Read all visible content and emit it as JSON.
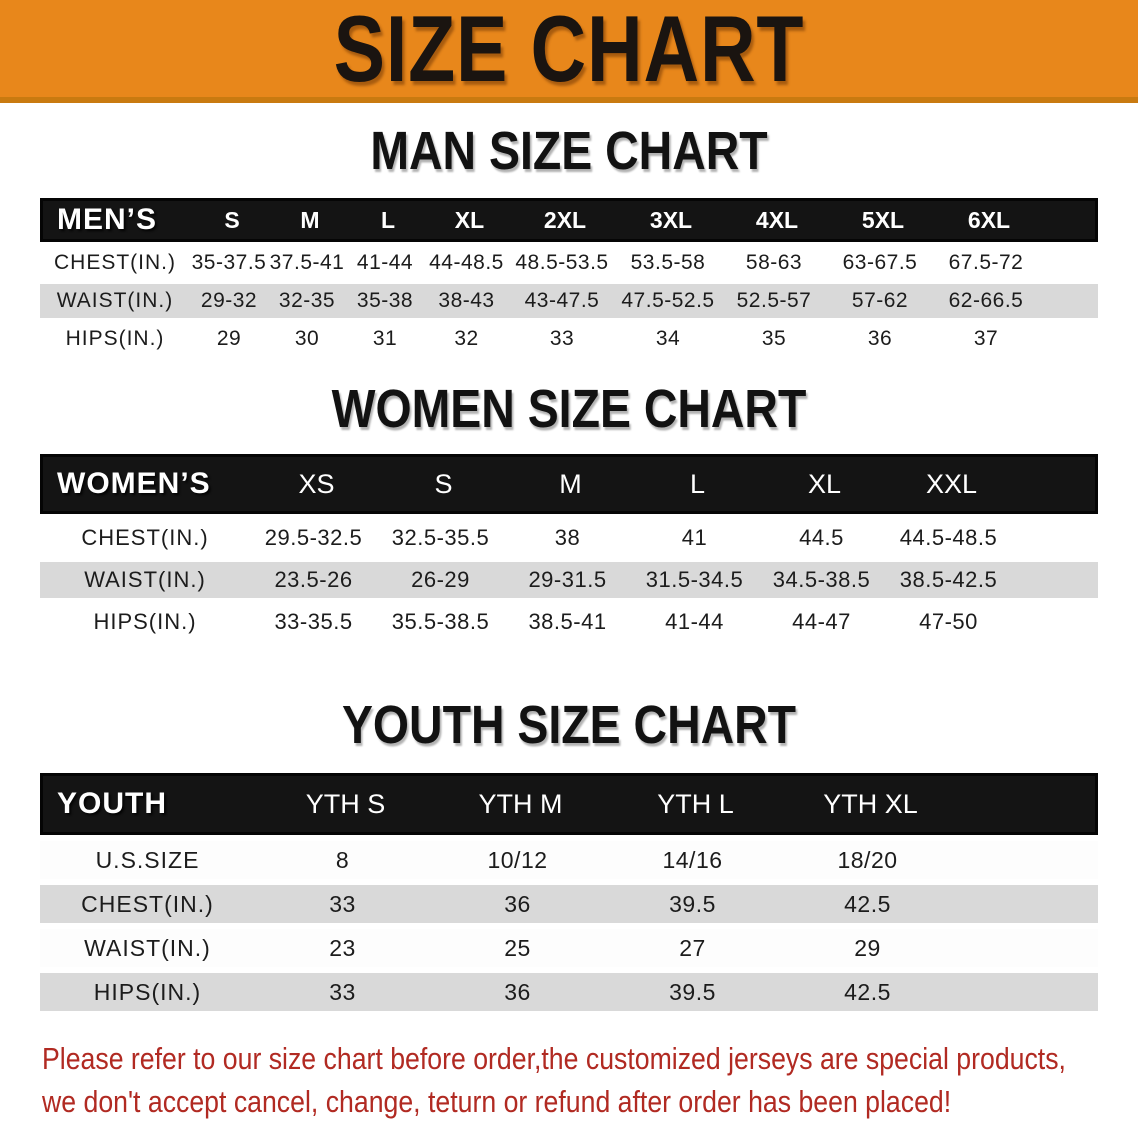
{
  "banner": {
    "title": "SIZE CHART"
  },
  "colors": {
    "banner_orange": "#E8871B",
    "banner_orange_dark": "#C97A10",
    "header_black": "#141414",
    "row_gray": "#D9D9D9",
    "footer_red": "#B12A22"
  },
  "men": {
    "title": "MAN SIZE CHART",
    "label": "MEN’S",
    "sizes": [
      "S",
      "M",
      "L",
      "XL",
      "2XL",
      "3XL",
      "4XL",
      "5XL",
      "6XL"
    ],
    "rows": [
      {
        "label": "CHEST(IN.)",
        "values": [
          "35-37.5",
          "37.5-41",
          "41-44",
          "44-48.5",
          "48.5-53.5",
          "53.5-58",
          "58-63",
          "63-67.5",
          "67.5-72"
        ]
      },
      {
        "label": "WAIST(IN.)",
        "values": [
          "29-32",
          "32-35",
          "35-38",
          "38-43",
          "43-47.5",
          "47.5-52.5",
          "52.5-57",
          "57-62",
          "62-66.5"
        ]
      },
      {
        "label": "HIPS(IN.)",
        "values": [
          "29",
          "30",
          "31",
          "32",
          "33",
          "34",
          "35",
          "36",
          "37"
        ]
      }
    ]
  },
  "women": {
    "title": "WOMEN SIZE CHART",
    "label": "WOMEN’S",
    "sizes": [
      "XS",
      "S",
      "M",
      "L",
      "XL",
      "XXL"
    ],
    "rows": [
      {
        "label": "CHEST(IN.)",
        "values": [
          "29.5-32.5",
          "32.5-35.5",
          "38",
          "41",
          "44.5",
          "44.5-48.5"
        ]
      },
      {
        "label": "WAIST(IN.)",
        "values": [
          "23.5-26",
          "26-29",
          "29-31.5",
          "31.5-34.5",
          "34.5-38.5",
          "38.5-42.5"
        ]
      },
      {
        "label": "HIPS(IN.)",
        "values": [
          "33-35.5",
          "35.5-38.5",
          "38.5-41",
          "41-44",
          "44-47",
          "47-50"
        ]
      }
    ]
  },
  "youth": {
    "title": "YOUTH SIZE CHART",
    "label": "YOUTH",
    "sizes": [
      "YTH S",
      "YTH M",
      "YTH L",
      "YTH XL"
    ],
    "rows": [
      {
        "label": "U.S.SIZE",
        "values": [
          "8",
          "10/12",
          "14/16",
          "18/20"
        ]
      },
      {
        "label": "CHEST(IN.)",
        "values": [
          "33",
          "36",
          "39.5",
          "42.5"
        ]
      },
      {
        "label": "WAIST(IN.)",
        "values": [
          "23",
          "25",
          "27",
          "29"
        ]
      },
      {
        "label": "HIPS(IN.)",
        "values": [
          "33",
          "36",
          "39.5",
          "42.5"
        ]
      }
    ]
  },
  "footer": {
    "line1": "Please refer to our size chart before order,the customized jerseys are special products,",
    "line2": "we don't accept cancel, change, teturn or refund after order has been placed!"
  }
}
